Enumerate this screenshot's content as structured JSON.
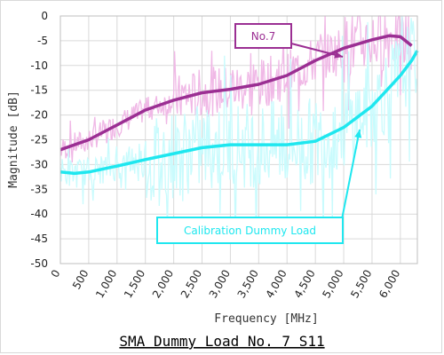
{
  "chart_data": {
    "type": "line",
    "title": "SMA Dummy Load No. 7 S11",
    "xlabel": "Frequency [MHz]",
    "ylabel": "Magnitude [dB]",
    "xlim": [
      0,
      6300
    ],
    "ylim": [
      -50,
      0
    ],
    "x_ticks": [
      0,
      500,
      1000,
      1500,
      2000,
      2500,
      3000,
      3500,
      4000,
      4500,
      5000,
      5500,
      6000
    ],
    "x_tick_labels": [
      "0",
      "500",
      "1,000",
      "1,500",
      "2,000",
      "2,500",
      "3,000",
      "3,500",
      "4,000",
      "4,500",
      "5,000",
      "5,500",
      "6,000"
    ],
    "y_ticks": [
      0,
      -5,
      -10,
      -15,
      -20,
      -25,
      -30,
      -35,
      -40,
      -45,
      -50
    ],
    "grid": true,
    "series": [
      {
        "name": "No.7",
        "color": "#9b2f93",
        "raw_color": "#f0b8e6",
        "x": [
          0,
          500,
          1000,
          1500,
          2000,
          2500,
          3000,
          3500,
          4000,
          4500,
          5000,
          5500,
          5800,
          6000,
          6200
        ],
        "values": [
          -27,
          -25,
          -22,
          -19,
          -17,
          -15.5,
          -14.8,
          -13.8,
          -12,
          -9,
          -6.5,
          -4.8,
          -4,
          -4.2,
          -6
        ]
      },
      {
        "name": "Calibration Dummy Load",
        "color": "#1fe7ef",
        "raw_color": "#c9fbfd",
        "x": [
          0,
          250,
          500,
          1000,
          1500,
          2000,
          2500,
          3000,
          3500,
          4000,
          4500,
          5000,
          5500,
          5800,
          6000,
          6200,
          6300
        ],
        "values": [
          -31.5,
          -31.8,
          -31.5,
          -30.3,
          -29,
          -27.8,
          -26.6,
          -26,
          -26,
          -26,
          -25.3,
          -22.5,
          -18.2,
          -14.5,
          -12,
          -9,
          -7
        ]
      }
    ]
  }
}
